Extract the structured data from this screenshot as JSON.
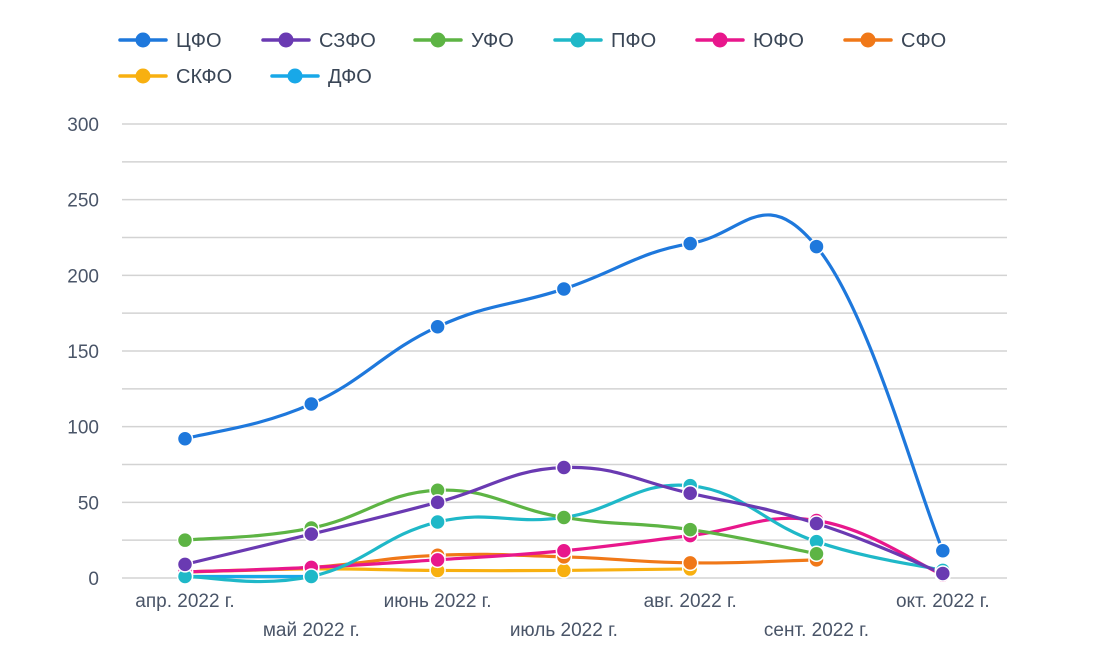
{
  "chart_data": {
    "type": "line",
    "title": "",
    "xlabel": "",
    "ylabel": "",
    "ylim": [
      0,
      300
    ],
    "y_ticks": [
      "0",
      "50",
      "100",
      "150",
      "200",
      "250",
      "300"
    ],
    "grid": true,
    "legend_position": "top-left",
    "categories": [
      "апр. 2022 г.",
      "май 2022 г.",
      "июнь 2022 г.",
      "июль 2022 г.",
      "авг. 2022 г.",
      "сент. 2022 г.",
      "окт. 2022 г."
    ],
    "series": [
      {
        "name": "ЦФО",
        "color": "#1e78dc",
        "values": [
          92,
          115,
          166,
          191,
          221,
          219,
          18
        ]
      },
      {
        "name": "СЗФО",
        "color": "#6a3ab2",
        "values": [
          9,
          29,
          50,
          73,
          56,
          36,
          3
        ]
      },
      {
        "name": "УФО",
        "color": "#5db444",
        "values": [
          25,
          33,
          58,
          40,
          32,
          16,
          null
        ]
      },
      {
        "name": "ПФО",
        "color": "#1fb8c8",
        "values": [
          1,
          1,
          37,
          40,
          61,
          24,
          5
        ]
      },
      {
        "name": "ЮФО",
        "color": "#e8178c",
        "values": [
          4,
          7,
          12,
          18,
          28,
          38,
          2
        ]
      },
      {
        "name": "СФО",
        "color": "#f07818",
        "values": [
          4,
          7,
          15,
          14,
          10,
          12,
          null
        ]
      },
      {
        "name": "СКФО",
        "color": "#f8b010",
        "values": [
          4,
          6,
          5,
          5,
          6,
          null,
          null
        ]
      },
      {
        "name": "ДФО",
        "color": "#18a8e8",
        "values": [
          1,
          1,
          null,
          null,
          null,
          null,
          null
        ]
      }
    ]
  }
}
